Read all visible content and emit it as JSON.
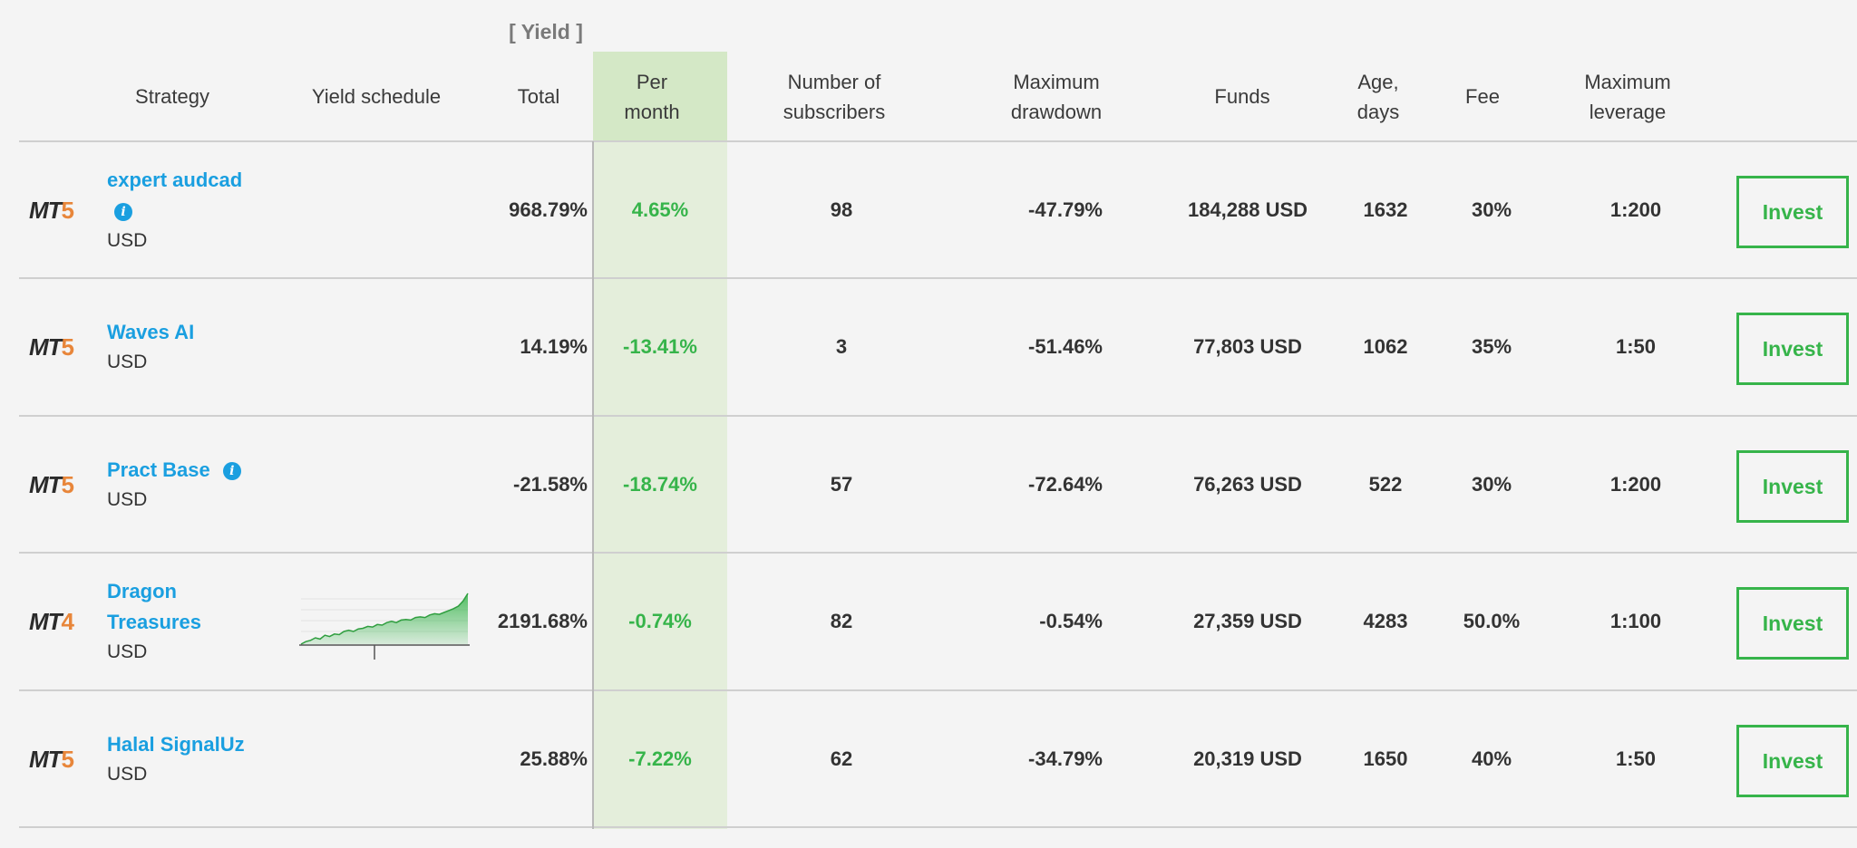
{
  "header": {
    "yield_group": "[ Yield ]",
    "strategy": "Strategy",
    "yield_schedule": "Yield schedule",
    "total": "Total",
    "per_month_1": "Per",
    "per_month_2": "month",
    "subscribers_1": "Number of",
    "subscribers_2": "subscribers",
    "drawdown_1": "Maximum",
    "drawdown_2": "drawdown",
    "funds": "Funds",
    "age_1": "Age,",
    "age_2": "days",
    "fee": "Fee",
    "leverage_1": "Maximum",
    "leverage_2": "leverage"
  },
  "colors": {
    "accent_blue": "#1a9fe0",
    "green": "#36b44a",
    "per_month_bg": "#e4eedb",
    "platform_orange": "#e8863a"
  },
  "rows": [
    {
      "platform_mt": "MT",
      "platform_ver": "5",
      "name_1": "expert audcad",
      "name_2": "",
      "has_info": true,
      "info_on_new_line": true,
      "currency": "USD",
      "total": "968.79%",
      "per_month": "4.65%",
      "subscribers": "98",
      "drawdown": "-47.79%",
      "funds": "184,288 USD",
      "age": "1632",
      "fee": "30%",
      "leverage": "1:200",
      "invest": "Invest",
      "has_chart": false
    },
    {
      "platform_mt": "MT",
      "platform_ver": "5",
      "name_1": "Waves AI",
      "name_2": "",
      "has_info": false,
      "currency": "USD",
      "total": "14.19%",
      "per_month": "-13.41%",
      "subscribers": "3",
      "drawdown": "-51.46%",
      "funds": "77,803 USD",
      "age": "1062",
      "fee": "35%",
      "leverage": "1:50",
      "invest": "Invest",
      "has_chart": false
    },
    {
      "platform_mt": "MT",
      "platform_ver": "5",
      "name_1": "Pract Base",
      "name_2": "",
      "has_info": true,
      "info_on_new_line": false,
      "currency": "USD",
      "total": "-21.58%",
      "per_month": "-18.74%",
      "subscribers": "57",
      "drawdown": "-72.64%",
      "funds": "76,263 USD",
      "age": "522",
      "fee": "30%",
      "leverage": "1:200",
      "invest": "Invest",
      "has_chart": false
    },
    {
      "platform_mt": "MT",
      "platform_ver": "4",
      "name_1": "Dragon",
      "name_2": "Treasures",
      "has_info": false,
      "currency": "USD",
      "total": "2191.68%",
      "per_month": "-0.74%",
      "subscribers": "82",
      "drawdown": "-0.54%",
      "funds": "27,359 USD",
      "age": "4283",
      "fee": "50.0%",
      "leverage": "1:100",
      "invest": "Invest",
      "has_chart": true,
      "chart_series": [
        2,
        6,
        8,
        12,
        10,
        16,
        14,
        18,
        17,
        22,
        24,
        22,
        26,
        27,
        30,
        29,
        33,
        32,
        36,
        38,
        36,
        40,
        41,
        40,
        44,
        45,
        44,
        48,
        50,
        49,
        52,
        55,
        58,
        62,
        70,
        82
      ]
    },
    {
      "platform_mt": "MT",
      "platform_ver": "5",
      "name_1": "Halal SignalUz",
      "name_2": "",
      "has_info": false,
      "currency": "USD",
      "total": "25.88%",
      "per_month": "-7.22%",
      "subscribers": "62",
      "drawdown": "-34.79%",
      "funds": "20,319 USD",
      "age": "1650",
      "fee": "40%",
      "leverage": "1:50",
      "invest": "Invest",
      "has_chart": false
    }
  ]
}
